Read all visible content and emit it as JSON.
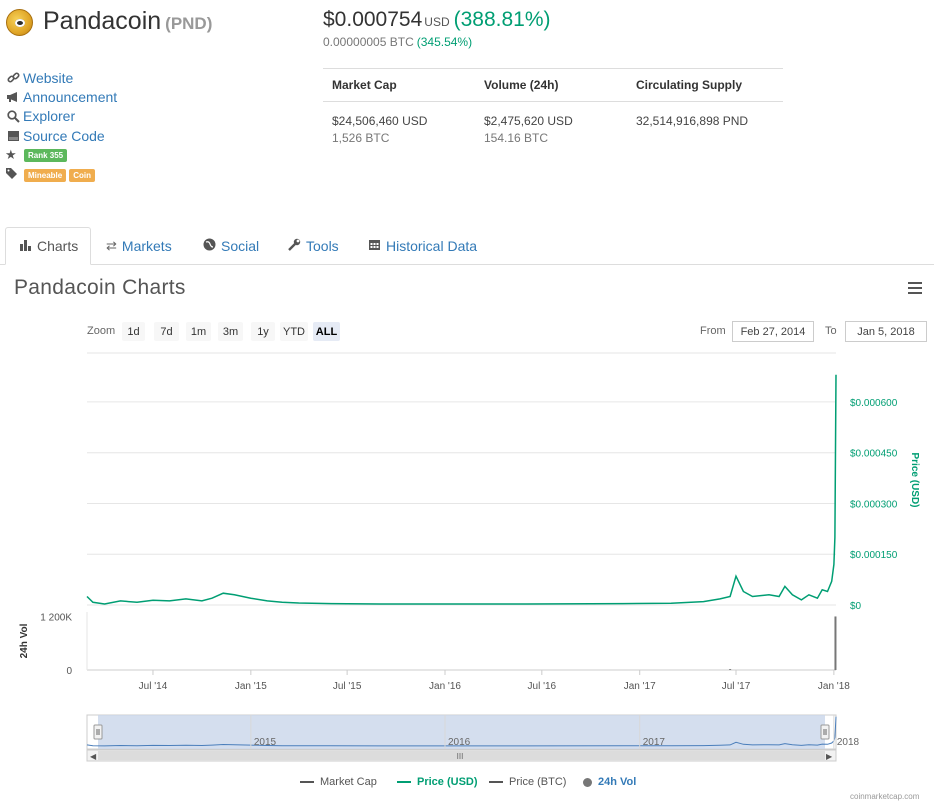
{
  "coin": {
    "name": "Pandacoin",
    "symbol": "(PND)",
    "price_usd": "$0.000754",
    "price_currency": "USD",
    "price_change": "(388.81%)",
    "price_btc": "0.00000005 BTC",
    "price_btc_change": "(345.54%)"
  },
  "links": [
    {
      "icon": "link-icon",
      "label": "Website"
    },
    {
      "icon": "bullhorn-icon",
      "label": "Announcement"
    },
    {
      "icon": "search-icon",
      "label": "Explorer"
    },
    {
      "icon": "hdd-icon",
      "label": "Source Code"
    }
  ],
  "rank_badge": "Rank 355",
  "tags": [
    "Mineable",
    "Coin"
  ],
  "stats": {
    "headers": [
      "Market Cap",
      "Volume (24h)",
      "Circulating Supply"
    ],
    "market_cap_usd": "$24,506,460 USD",
    "market_cap_btc": "1,526 BTC",
    "volume_usd": "$2,475,620 USD",
    "volume_btc": "154.16 BTC",
    "supply": "32,514,916,898 PND"
  },
  "tabs": [
    {
      "icon": "bar-chart-icon",
      "label": "Charts",
      "active": true
    },
    {
      "icon": "exchange-icon",
      "label": "Markets"
    },
    {
      "icon": "globe-icon",
      "label": "Social"
    },
    {
      "icon": "wrench-icon",
      "label": "Tools"
    },
    {
      "icon": "calendar-icon",
      "label": "Historical Data"
    }
  ],
  "chart_header": {
    "title": "Pandacoin Charts",
    "zoom_label": "Zoom",
    "zoom_options": [
      "1d",
      "7d",
      "1m",
      "3m",
      "1y",
      "YTD",
      "ALL"
    ],
    "zoom_selected": "ALL",
    "from_label": "From",
    "from_date": "Feb 27, 2014",
    "to_label": "To",
    "to_date": "Jan 5, 2018"
  },
  "legend": [
    {
      "label": "Market Cap",
      "color": "#555555"
    },
    {
      "label": "Price (USD)",
      "color": "#009e73"
    },
    {
      "label": "Price (BTC)",
      "color": "#555555"
    },
    {
      "label": "24h Vol",
      "color": "#777777"
    }
  ],
  "credit": "coinmarketcap.com",
  "chart_data": {
    "type": "line",
    "ylabel": "Price (USD)",
    "volume_label": "24h Vol",
    "price_ticks": [
      "$0",
      "$0.000150",
      "$0.000300",
      "$0.000450",
      "$0.000600"
    ],
    "price_tick_values": [
      0,
      0.00015,
      0.0003,
      0.00045,
      0.0006
    ],
    "ylim": [
      0,
      0.00065
    ],
    "volume_ticks": [
      "0",
      "1 200K"
    ],
    "volume_tick_values": [
      0,
      1200000
    ],
    "x_ticks": [
      "Jul '14",
      "Jan '15",
      "Jul '15",
      "Jan '16",
      "Jul '16",
      "Jan '17",
      "Jul '17",
      "Jan '18"
    ],
    "x_tick_dates": [
      "2014-07-01",
      "2015-01-01",
      "2015-07-01",
      "2016-01-01",
      "2016-07-01",
      "2017-01-01",
      "2017-07-01",
      "2018-01-01"
    ],
    "navigator_ticks": [
      "2015",
      "2016",
      "2017",
      "2018"
    ],
    "navigator_tick_dates": [
      "2015-01-01",
      "2016-01-01",
      "2017-01-01",
      "2018-01-01"
    ],
    "xlim": [
      "2014-02-27",
      "2018-01-05"
    ],
    "series": [
      {
        "name": "Price (USD)",
        "color": "#009e73",
        "x": [
          "2014-02-27",
          "2014-03-10",
          "2014-04-01",
          "2014-05-01",
          "2014-06-01",
          "2014-07-01",
          "2014-08-01",
          "2014-09-01",
          "2014-10-01",
          "2014-10-20",
          "2014-11-10",
          "2014-12-01",
          "2015-01-01",
          "2015-02-01",
          "2015-03-01",
          "2015-04-01",
          "2015-06-01",
          "2015-09-01",
          "2016-01-01",
          "2016-06-01",
          "2016-12-01",
          "2017-03-01",
          "2017-05-01",
          "2017-06-01",
          "2017-06-20",
          "2017-07-01",
          "2017-07-15",
          "2017-08-01",
          "2017-09-01",
          "2017-09-20",
          "2017-10-01",
          "2017-10-15",
          "2017-11-01",
          "2017-11-15",
          "2017-12-01",
          "2017-12-10",
          "2017-12-20",
          "2017-12-28",
          "2018-01-01",
          "2018-01-03",
          "2018-01-05"
        ],
        "y": [
          2.5e-05,
          8e-06,
          3e-06,
          1.2e-05,
          8e-06,
          1.4e-05,
          1.2e-05,
          1.8e-05,
          1.2e-05,
          2e-05,
          3.5e-05,
          3e-05,
          2e-05,
          1.2e-05,
          8e-06,
          6e-06,
          4e-06,
          3e-06,
          3e-06,
          3e-06,
          4e-06,
          5e-06,
          1e-05,
          1.8e-05,
          2.5e-05,
          8.5e-05,
          4e-05,
          2.5e-05,
          3e-05,
          2.5e-05,
          5.5e-05,
          3e-05,
          1.5e-05,
          3e-05,
          2e-05,
          4.5e-05,
          4e-05,
          7e-05,
          0.00012,
          0.0002,
          0.00068
        ]
      }
    ],
    "volume": [
      {
        "date": "2017-06-20",
        "value": 20000
      },
      {
        "date": "2018-01-04",
        "value": 1200000
      }
    ]
  }
}
